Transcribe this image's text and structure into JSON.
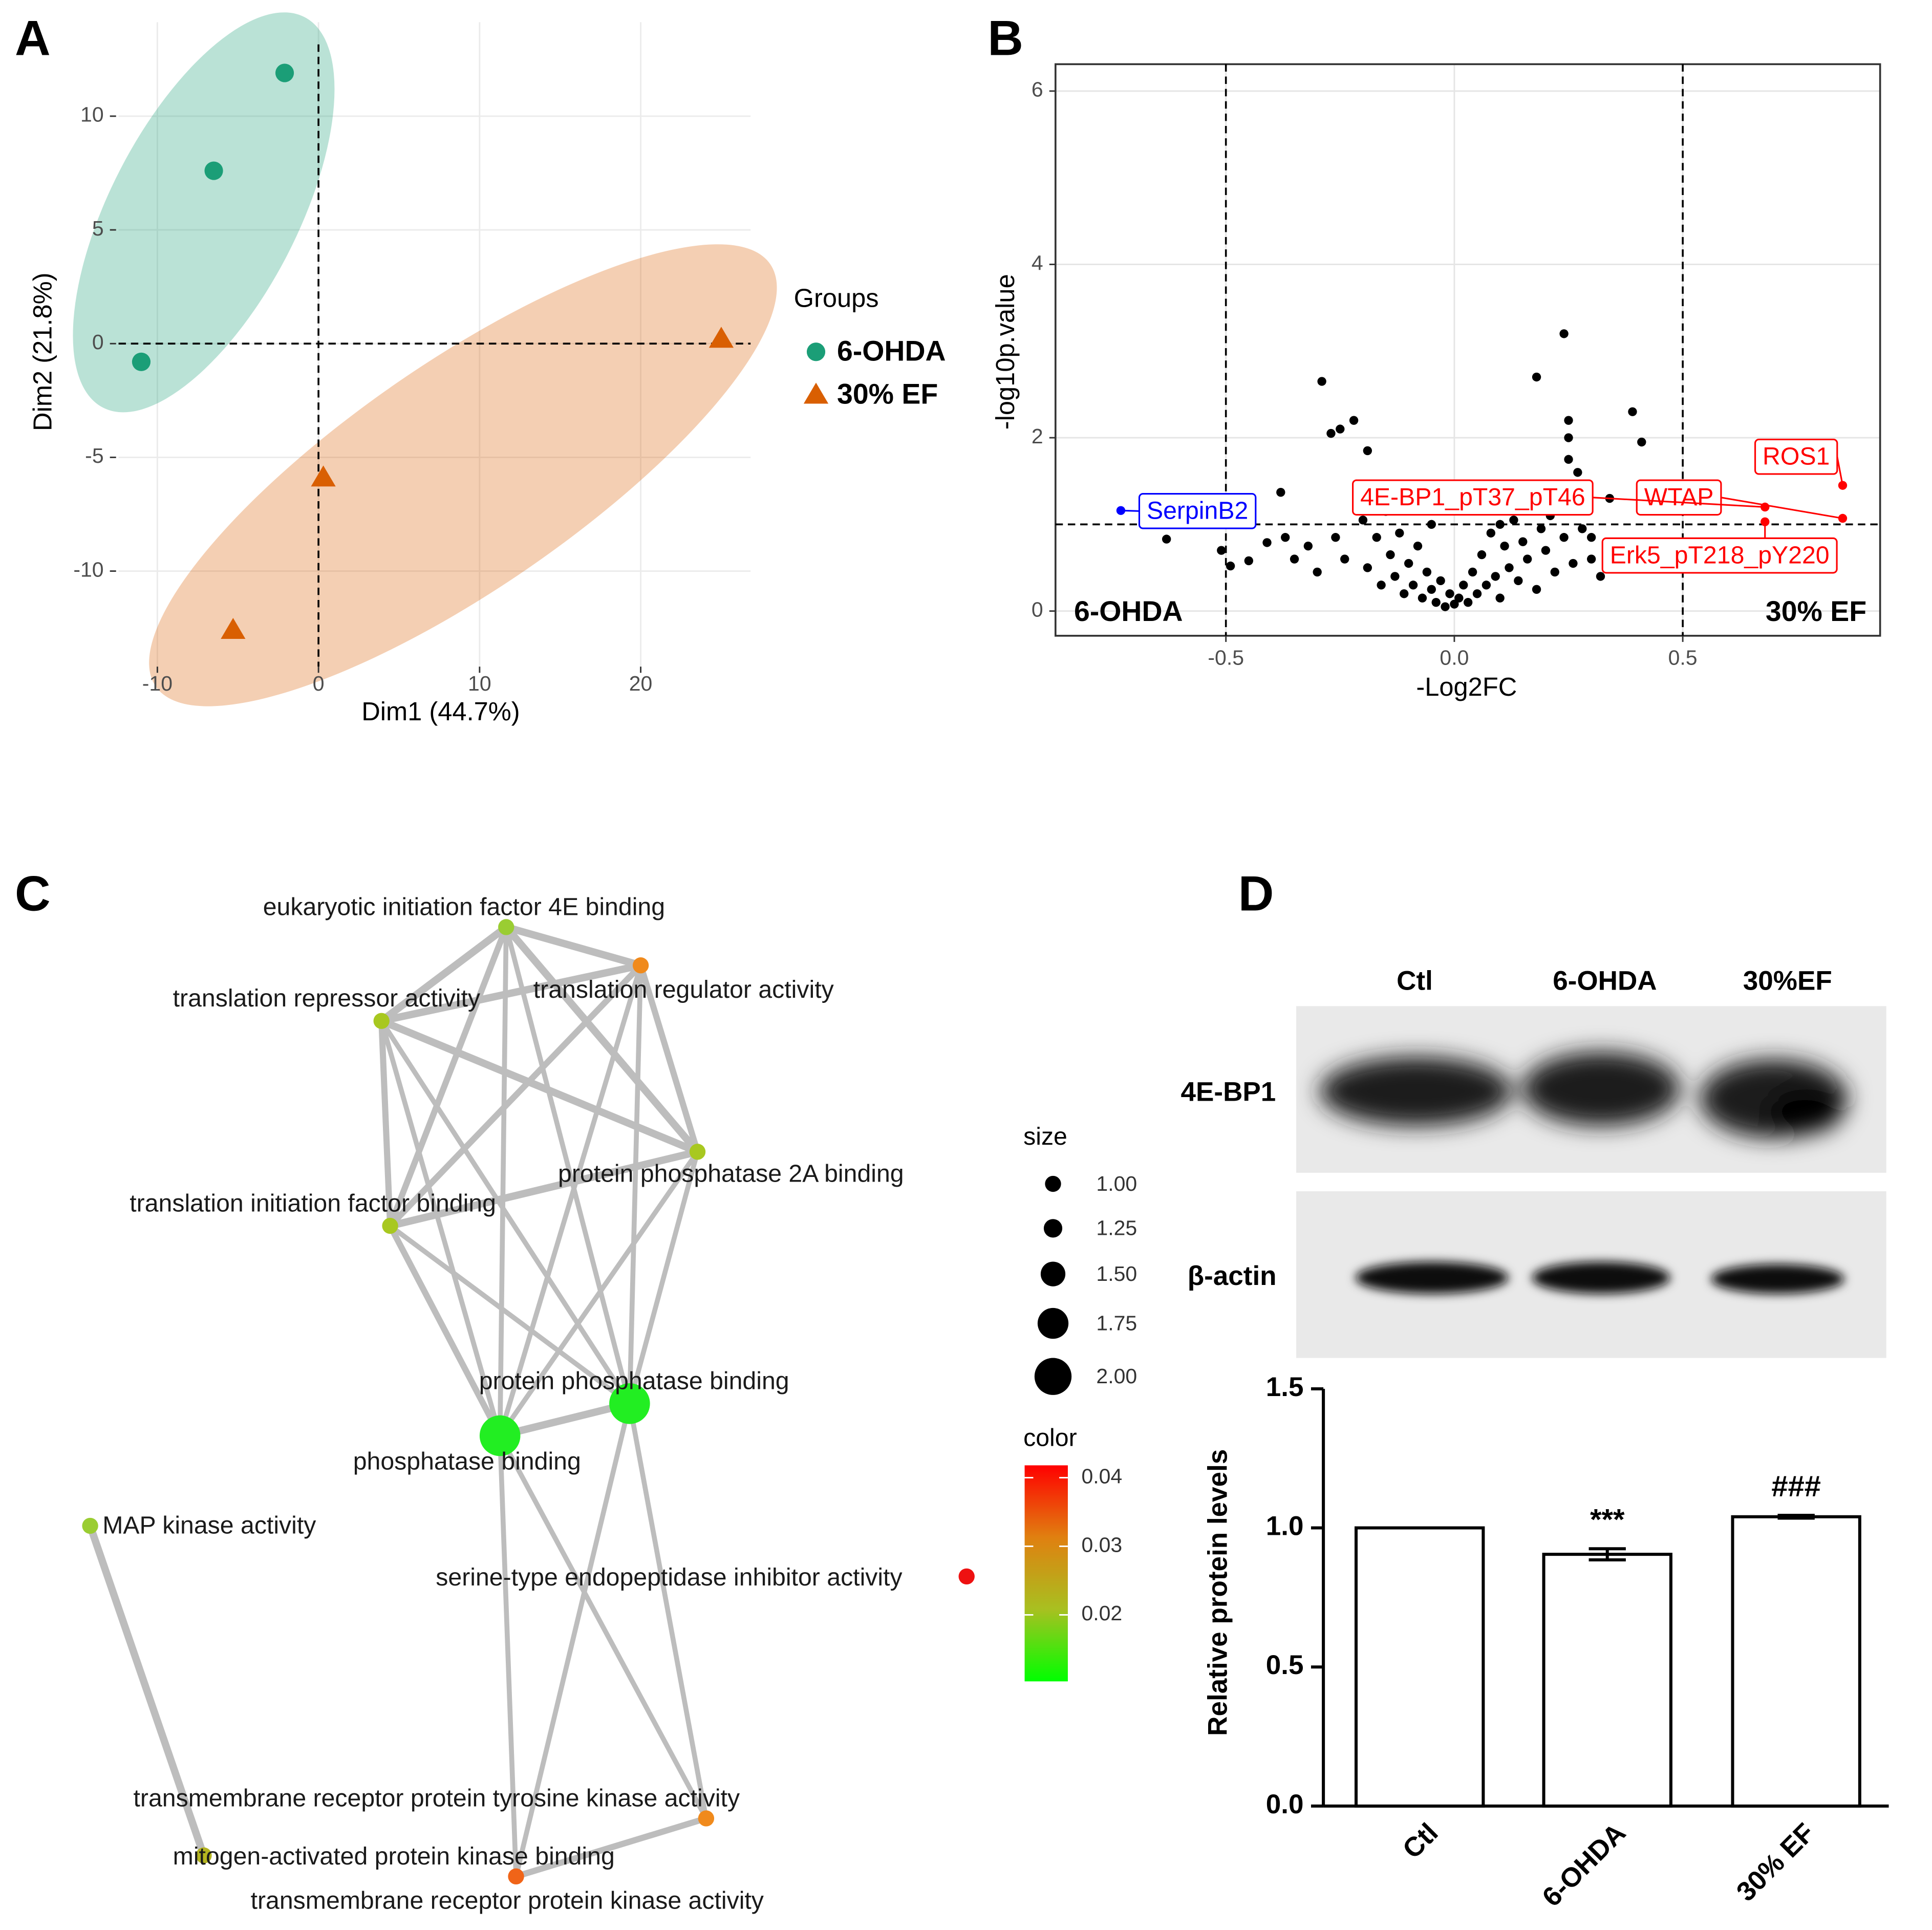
{
  "panels": [
    "A",
    "B",
    "C",
    "D"
  ],
  "chart_data": [
    {
      "type": "scatter",
      "xlabel": "Dim1 (44.7%)",
      "ylabel": "Dim2 (21.8%)",
      "legend_title": "Groups",
      "xlim": [
        -12.41,
        26.82
      ],
      "ylim": [
        -14.2,
        14.13
      ],
      "xticks": [
        -10,
        0,
        10,
        20
      ],
      "yticks": [
        -10,
        -5,
        0,
        5,
        10
      ],
      "grid": true,
      "hlines": [
        0
      ],
      "vlines": [
        0
      ],
      "ellipses": true,
      "series": [
        {
          "name": "6-OHDA",
          "color": "#1b9e77",
          "marker": "circle",
          "x": [
            -2.1,
            -6.5,
            -11
          ],
          "values": [
            11.9,
            7.6,
            -0.8
          ]
        },
        {
          "name": "30% EF",
          "color": "#d95f02",
          "marker": "triangle",
          "x": [
            25,
            0.3,
            -5.3
          ],
          "values": [
            0.2,
            -5.9,
            -12.6
          ]
        }
      ]
    },
    {
      "type": "volcano",
      "xlabel": "-Log2FC",
      "ylabel": "-log10p.value",
      "xlim": [
        -0.873,
        0.932
      ],
      "ylim": [
        -0.285,
        6.31
      ],
      "xticks": [
        -0.5,
        {
          "value": 0,
          "label": "0.0"
        },
        0.5
      ],
      "yticks": [
        0,
        2,
        4,
        6
      ],
      "grid": true,
      "vlines": [
        -0.5,
        0.5
      ],
      "hlines": [
        1
      ],
      "annotations": [
        "6-OHDA",
        "30% EF"
      ],
      "series": [
        {
          "color": "#000000",
          "x": [
            -0.63,
            -0.51,
            -0.49,
            -0.45,
            -0.41,
            -0.38,
            -0.37,
            -0.35,
            -0.32,
            -0.3,
            -0.29,
            -0.27,
            -0.25,
            -0.22,
            -0.19,
            -0.26,
            -0.24,
            -0.21,
            -0.2,
            -0.19,
            -0.17,
            -0.16,
            -0.15,
            -0.14,
            -0.13,
            -0.12,
            -0.11,
            -0.1,
            -0.09,
            -0.08,
            -0.07,
            -0.06,
            -0.05,
            -0.04,
            -0.03,
            -0.02,
            -0.01,
            0.0,
            0.01,
            0.02,
            0.03,
            0.04,
            0.05,
            0.06,
            0.07,
            0.08,
            0.09,
            0.1,
            0.11,
            0.12,
            0.13,
            0.14,
            0.15,
            0.16,
            0.17,
            0.18,
            0.19,
            0.2,
            0.21,
            0.22,
            0.23,
            0.24,
            0.25,
            0.26,
            0.27,
            0.28,
            0.3,
            0.32,
            0.24,
            0.18,
            0.25,
            0.25,
            0.39,
            0.41,
            0.27,
            0.34,
            0.3,
            0.05,
            -0.05,
            0.1
          ],
          "values": [
            0.83,
            0.7,
            0.52,
            0.58,
            0.79,
            1.37,
            0.85,
            0.6,
            0.75,
            0.45,
            2.65,
            2.05,
            2.1,
            2.2,
            1.85,
            0.85,
            0.6,
            1.45,
            1.05,
            0.5,
            0.85,
            0.3,
            1.15,
            0.65,
            0.4,
            0.9,
            0.2,
            0.55,
            0.3,
            0.75,
            0.15,
            0.45,
            0.25,
            0.1,
            0.35,
            0.05,
            0.2,
            0.08,
            0.15,
            0.3,
            0.1,
            0.45,
            0.2,
            0.65,
            0.3,
            0.9,
            0.4,
            0.15,
            0.75,
            0.5,
            1.05,
            0.35,
            0.8,
            0.6,
            1.2,
            0.25,
            0.95,
            0.7,
            1.1,
            0.45,
            1.3,
            0.85,
            1.75,
            0.55,
            1.6,
            0.95,
            0.6,
            0.4,
            3.2,
            2.7,
            2.2,
            2.0,
            2.3,
            1.95,
            1.35,
            1.3,
            0.85,
            1.2,
            1.0,
            1.0
          ]
        },
        {
          "color": "#0000ff",
          "x": [
            -0.73
          ],
          "values": [
            1.16
          ],
          "labels": [
            "SerpinB2"
          ]
        },
        {
          "color": "#ff0000",
          "x": [
            0.85,
            0.85,
            0.68,
            0.68
          ],
          "values": [
            1.45,
            1.07,
            1.2,
            1.03
          ],
          "labels": [
            "ROS1",
            "WTAP",
            "4E-BP1_pT37_pT46",
            "Erk5_pT218_pY220"
          ]
        }
      ]
    },
    {
      "type": "bar",
      "ylabel": "Relative protein levels",
      "categories": [
        "Ctl",
        "6-OHDA",
        "30% EF"
      ],
      "values": [
        1.0,
        0.905,
        1.04
      ],
      "errors": [
        0,
        0.02,
        0.005
      ],
      "annotations": [
        null,
        "***",
        "###"
      ],
      "ylim": [
        0,
        1.5
      ],
      "yticks": [
        {
          "value": 0,
          "label": "0.0"
        },
        0.5,
        {
          "value": 1,
          "label": "1.0"
        },
        1.5
      ],
      "color": "#ffffff",
      "edgecolor": "#000000"
    }
  ],
  "network": {
    "nodes": [
      {
        "label": "eukaryotic initiation factor 4E binding",
        "size": 1,
        "color": "#9acd32"
      },
      {
        "label": "translation regulator activity",
        "size": 1,
        "color": "#f08a1c"
      },
      {
        "label": "translation repressor activity",
        "size": 1,
        "color": "#a8c820"
      },
      {
        "label": "protein phosphatase 2A binding",
        "size": 1,
        "color": "#a8c820"
      },
      {
        "label": "translation initiation factor binding",
        "size": 1,
        "color": "#a8c820"
      },
      {
        "label": "protein phosphatase binding",
        "size": 2,
        "color": "#22ee22"
      },
      {
        "label": "phosphatase binding",
        "size": 2,
        "color": "#22ee22"
      },
      {
        "label": "MAP kinase activity",
        "size": 1,
        "color": "#9acd32"
      },
      {
        "label": "serine-type endopeptidase inhibitor activity",
        "size": 1,
        "color": "#ee1111"
      },
      {
        "label": "transmembrane receptor protein tyrosine kinase activity",
        "size": 1,
        "color": "#f08a1c"
      },
      {
        "label": "mitogen-activated protein kinase binding",
        "size": 1,
        "color": "#b4b420"
      },
      {
        "label": "transmembrane receptor protein kinase activity",
        "size": 1,
        "color": "#f06418"
      }
    ],
    "size_title": "size",
    "size_ticks": [
      {
        "value": 1,
        "label": "1.00"
      },
      {
        "value": 1.25,
        "label": "1.25"
      },
      {
        "value": 1.5,
        "label": "1.50"
      },
      {
        "value": 1.75,
        "label": "1.75"
      },
      {
        "value": 2,
        "label": "2.00"
      }
    ],
    "color_title": "color",
    "color_lim": [
      0.0103,
      0.0418
    ],
    "color_ticks": [
      0.02,
      0.03,
      0.04
    ],
    "colorscale": [
      "#00ff00",
      "#a8c020",
      "#e08010",
      "#ff0000"
    ]
  },
  "blot": {
    "lanes": [
      "Ctl",
      "6-OHDA",
      "30%EF"
    ],
    "rows": [
      "4E-BP1",
      "β-actin"
    ]
  }
}
